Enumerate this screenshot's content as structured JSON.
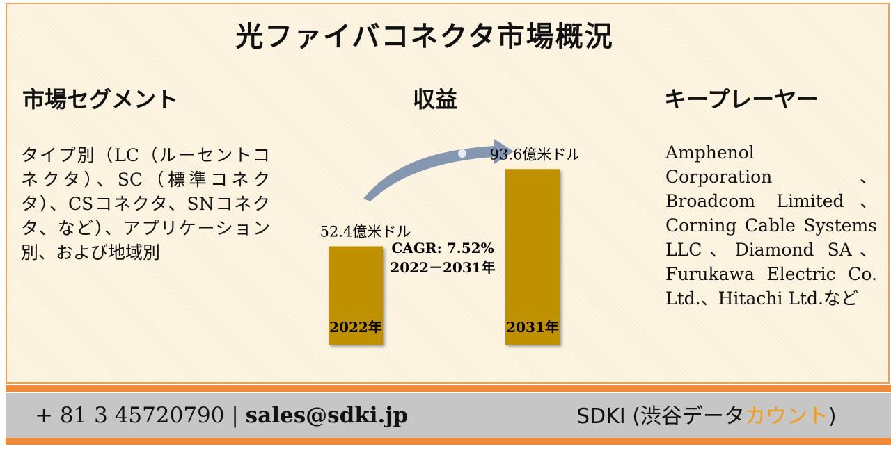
{
  "title": "光ファイバコネクタ市場概況",
  "segments": {
    "heading": "市場セグメント",
    "text": "タイプ別（LC（ルーセントコネクタ）、SC（標準コネクタ）、CSコネクタ、SNコネクタ、など）、アプリケーション別、および地域別"
  },
  "revenue": {
    "heading": "収益"
  },
  "players": {
    "heading": "キープレーヤー",
    "text": "Amphenol Corporation、Broadcom Limited、Corning Cable Systems LLC、Diamond SA、Furukawa Electric Co. Ltd.、Hitachi Ltd.など"
  },
  "chart_data": {
    "type": "bar",
    "categories": [
      "2022年",
      "2031年"
    ],
    "values": [
      52.4,
      93.6
    ],
    "value_labels": [
      "52.4億米ドル",
      "93.6億米ドル"
    ],
    "unit": "億米ドル",
    "annotation": {
      "line1": "CAGR: 7.52%",
      "line2": "2022－2031年"
    },
    "bar_color": "#bf9000",
    "arrow_color": "#8496b0",
    "grid": false
  },
  "footer": {
    "phone": "+ 81 3 45720790",
    "separator": "|",
    "email": "sales@sdki.jp",
    "brand_prefix": "SDKI (渋谷データ",
    "brand_accent": "カウント",
    "brand_suffix": ")",
    "accent_color": "#f39a16"
  }
}
